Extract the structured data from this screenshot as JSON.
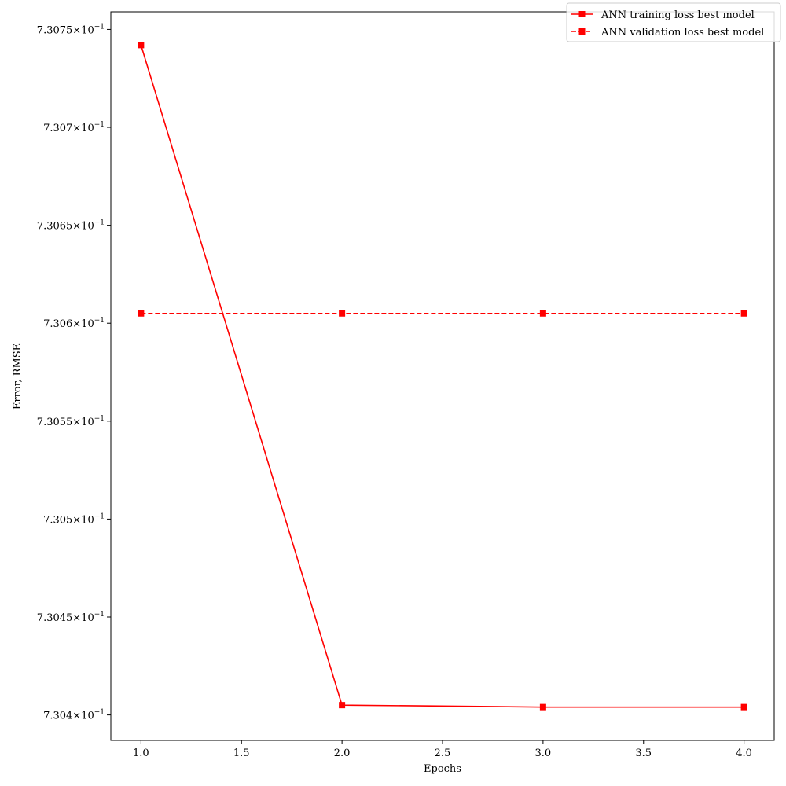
{
  "chart_data": {
    "type": "line",
    "title": "",
    "xlabel": "Epochs",
    "ylabel": "Error, RMSE",
    "x": [
      1,
      2,
      3,
      4
    ],
    "xlim": [
      0.85,
      4.15
    ],
    "ylim": [
      0.730387,
      0.730759
    ],
    "x_ticks": [
      1.0,
      1.5,
      2.0,
      2.5,
      3.0,
      3.5,
      4.0
    ],
    "x_tick_labels": [
      "1.0",
      "1.5",
      "2.0",
      "2.5",
      "3.0",
      "3.5",
      "4.0"
    ],
    "y_ticks": [
      0.7304,
      0.73045,
      0.7305,
      0.73055,
      0.7306,
      0.73065,
      0.7307,
      0.73075
    ],
    "y_tick_labels": [
      {
        "mantissa": "7.304",
        "exp": "−1"
      },
      {
        "mantissa": "7.3045",
        "exp": "−1"
      },
      {
        "mantissa": "7.305",
        "exp": "−1"
      },
      {
        "mantissa": "7.3055",
        "exp": "−1"
      },
      {
        "mantissa": "7.306",
        "exp": "−1"
      },
      {
        "mantissa": "7.3065",
        "exp": "−1"
      },
      {
        "mantissa": "7.307",
        "exp": "−1"
      },
      {
        "mantissa": "7.3075",
        "exp": "−1"
      }
    ],
    "y_scale": "log",
    "grid": false,
    "legend_position": "top-right",
    "series": [
      {
        "name": "ANN training loss best model",
        "values": [
          0.730742,
          0.730405,
          0.730404,
          0.730404
        ],
        "color": "#ff0000",
        "line_style": "solid",
        "marker": "square"
      },
      {
        "name": "ANN validation loss best model",
        "values": [
          0.730605,
          0.730605,
          0.730605,
          0.730605
        ],
        "color": "#ff0000",
        "line_style": "dashed",
        "marker": "square"
      }
    ]
  }
}
